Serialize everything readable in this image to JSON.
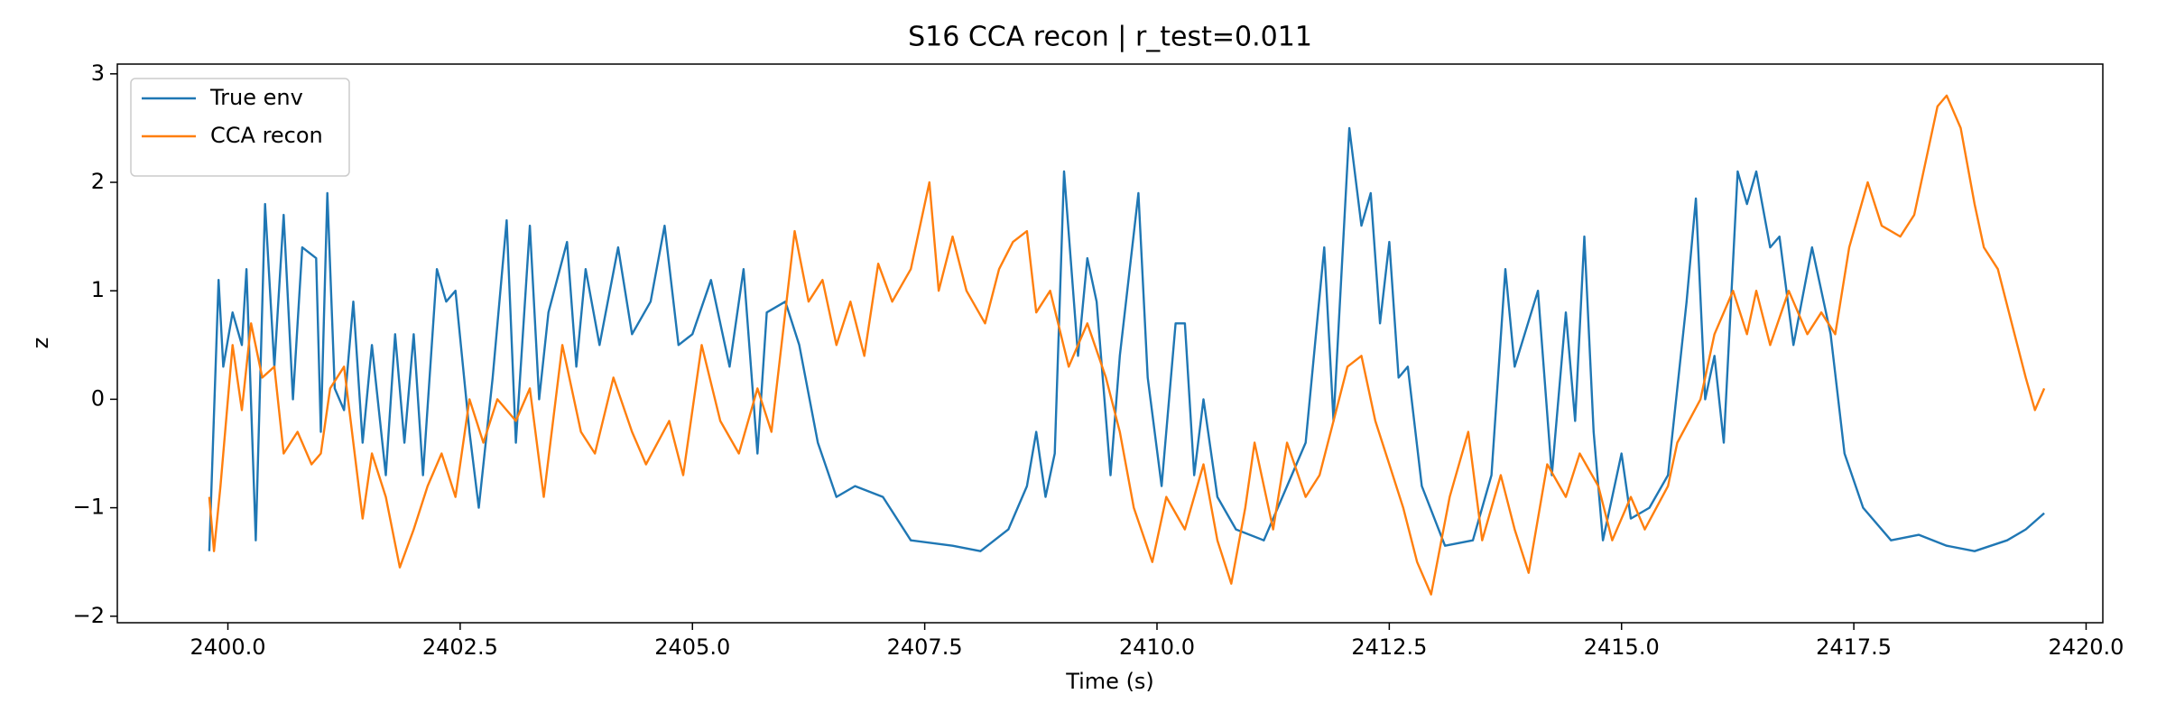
{
  "chart_data": {
    "type": "line",
    "title": "S16 CCA recon | r_test=0.011",
    "x_label": "Time (s)",
    "y_label": "z",
    "xlim": [
      2398.81,
      2420.18
    ],
    "ylim": [
      -2.06,
      3.09
    ],
    "xticks": [
      {
        "value": 2400,
        "label": "2400.0"
      },
      {
        "value": 2402.5,
        "label": "2402.5"
      },
      {
        "value": 2405,
        "label": "2405.0"
      },
      {
        "value": 2407.5,
        "label": "2407.5"
      },
      {
        "value": 2410,
        "label": "2410.0"
      },
      {
        "value": 2412.5,
        "label": "2412.5"
      },
      {
        "value": 2415,
        "label": "2415.0"
      },
      {
        "value": 2417.5,
        "label": "2417.5"
      },
      {
        "value": 2420,
        "label": "2420.0"
      }
    ],
    "yticks": [
      {
        "value": -2,
        "label": "−2"
      },
      {
        "value": -1,
        "label": "−1"
      },
      0,
      1,
      2,
      3
    ],
    "grid": false,
    "legend": "upper left",
    "series": [
      {
        "name": "True env",
        "color": "#1f77b4",
        "x": [
          2399.8,
          2399.9,
          2399.95,
          2400.05,
          2400.15,
          2400.2,
          2400.3,
          2400.4,
          2400.5,
          2400.6,
          2400.7,
          2400.8,
          2400.95,
          2401.0,
          2401.07,
          2401.15,
          2401.25,
          2401.35,
          2401.45,
          2401.55,
          2401.7,
          2401.8,
          2401.9,
          2402.0,
          2402.1,
          2402.25,
          2402.35,
          2402.45,
          2402.6,
          2402.7,
          2402.85,
          2403.0,
          2403.1,
          2403.25,
          2403.35,
          2403.45,
          2403.65,
          2403.75,
          2403.85,
          2404.0,
          2404.2,
          2404.35,
          2404.55,
          2404.7,
          2404.85,
          2405.0,
          2405.2,
          2405.4,
          2405.55,
          2405.7,
          2405.8,
          2406.0,
          2406.15,
          2406.35,
          2406.55,
          2406.75,
          2407.05,
          2407.35,
          2407.8,
          2408.1,
          2408.4,
          2408.6,
          2408.7,
          2408.8,
          2408.9,
          2409.0,
          2409.15,
          2409.25,
          2409.35,
          2409.5,
          2409.6,
          2409.8,
          2409.9,
          2410.05,
          2410.2,
          2410.3,
          2410.4,
          2410.5,
          2410.65,
          2410.85,
          2411.15,
          2411.45,
          2411.6,
          2411.8,
          2411.9,
          2412.07,
          2412.2,
          2412.3,
          2412.4,
          2412.5,
          2412.6,
          2412.7,
          2412.85,
          2413.1,
          2413.4,
          2413.6,
          2413.75,
          2413.85,
          2414.1,
          2414.25,
          2414.4,
          2414.5,
          2414.6,
          2414.7,
          2414.8,
          2415.0,
          2415.1,
          2415.3,
          2415.5,
          2415.7,
          2415.8,
          2415.9,
          2416.0,
          2416.1,
          2416.25,
          2416.35,
          2416.45,
          2416.6,
          2416.7,
          2416.85,
          2417.05,
          2417.25,
          2417.4,
          2417.6,
          2417.9,
          2418.2,
          2418.5,
          2418.8,
          2419.15,
          2419.35,
          2419.55
        ],
        "values": [
          -1.4,
          1.1,
          0.3,
          0.8,
          0.5,
          1.2,
          -1.3,
          1.8,
          0.3,
          1.7,
          0.0,
          1.4,
          1.3,
          -0.3,
          1.9,
          0.1,
          -0.1,
          0.9,
          -0.4,
          0.5,
          -0.7,
          0.6,
          -0.4,
          0.6,
          -0.7,
          1.2,
          0.9,
          1.0,
          -0.3,
          -1.0,
          0.2,
          1.65,
          -0.4,
          1.6,
          0.0,
          0.8,
          1.45,
          0.3,
          1.2,
          0.5,
          1.4,
          0.6,
          0.9,
          1.6,
          0.5,
          0.6,
          1.1,
          0.3,
          1.2,
          -0.5,
          0.8,
          0.9,
          0.5,
          -0.4,
          -0.9,
          -0.8,
          -0.9,
          -1.3,
          -1.35,
          -1.4,
          -1.2,
          -0.8,
          -0.3,
          -0.9,
          -0.5,
          2.1,
          0.4,
          1.3,
          0.9,
          -0.7,
          0.4,
          1.9,
          0.2,
          -0.8,
          0.7,
          0.7,
          -0.7,
          0.0,
          -0.9,
          -1.2,
          -1.3,
          -0.7,
          -0.4,
          1.4,
          -0.2,
          2.5,
          1.6,
          1.9,
          0.7,
          1.45,
          0.2,
          0.3,
          -0.8,
          -1.35,
          -1.3,
          -0.7,
          1.2,
          0.3,
          1.0,
          -0.7,
          0.8,
          -0.2,
          1.5,
          -0.3,
          -1.3,
          -0.5,
          -1.1,
          -1.0,
          -0.7,
          0.9,
          1.85,
          0.0,
          0.4,
          -0.4,
          2.1,
          1.8,
          2.1,
          1.4,
          1.5,
          0.5,
          1.4,
          0.6,
          -0.5,
          -1.0,
          -1.3,
          -1.25,
          -1.35,
          -1.4,
          -1.3,
          -1.2,
          -1.05
        ]
      },
      {
        "name": "CCA recon",
        "color": "#ff7f0e",
        "x": [
          2399.8,
          2399.85,
          2399.92,
          2400.05,
          2400.15,
          2400.25,
          2400.37,
          2400.5,
          2400.6,
          2400.75,
          2400.9,
          2401.0,
          2401.1,
          2401.25,
          2401.45,
          2401.55,
          2401.7,
          2401.85,
          2402.0,
          2402.15,
          2402.3,
          2402.45,
          2402.6,
          2402.75,
          2402.9,
          2403.1,
          2403.25,
          2403.4,
          2403.6,
          2403.8,
          2403.95,
          2404.15,
          2404.35,
          2404.5,
          2404.75,
          2404.9,
          2405.1,
          2405.3,
          2405.5,
          2405.7,
          2405.85,
          2406.1,
          2406.25,
          2406.4,
          2406.55,
          2406.7,
          2406.85,
          2407.0,
          2407.15,
          2407.35,
          2407.55,
          2407.65,
          2407.8,
          2407.95,
          2408.15,
          2408.3,
          2408.45,
          2408.6,
          2408.7,
          2408.85,
          2409.05,
          2409.25,
          2409.45,
          2409.6,
          2409.75,
          2409.95,
          2410.1,
          2410.3,
          2410.5,
          2410.65,
          2410.8,
          2410.95,
          2411.05,
          2411.25,
          2411.4,
          2411.6,
          2411.75,
          2411.9,
          2412.05,
          2412.2,
          2412.35,
          2412.5,
          2412.65,
          2412.8,
          2412.95,
          2413.15,
          2413.35,
          2413.5,
          2413.7,
          2413.85,
          2414.0,
          2414.2,
          2414.4,
          2414.55,
          2414.75,
          2414.9,
          2415.1,
          2415.25,
          2415.5,
          2415.6,
          2415.85,
          2416.0,
          2416.2,
          2416.35,
          2416.45,
          2416.6,
          2416.8,
          2417.0,
          2417.15,
          2417.3,
          2417.45,
          2417.65,
          2417.8,
          2418.0,
          2418.15,
          2418.3,
          2418.4,
          2418.5,
          2418.65,
          2418.8,
          2418.9,
          2419.05,
          2419.2,
          2419.35,
          2419.45,
          2419.55
        ],
        "values": [
          -0.9,
          -1.4,
          -0.8,
          0.5,
          -0.1,
          0.7,
          0.2,
          0.3,
          -0.5,
          -0.3,
          -0.6,
          -0.5,
          0.1,
          0.3,
          -1.1,
          -0.5,
          -0.9,
          -1.55,
          -1.2,
          -0.8,
          -0.5,
          -0.9,
          0.0,
          -0.4,
          0.0,
          -0.2,
          0.1,
          -0.9,
          0.5,
          -0.3,
          -0.5,
          0.2,
          -0.3,
          -0.6,
          -0.2,
          -0.7,
          0.5,
          -0.2,
          -0.5,
          0.1,
          -0.3,
          1.55,
          0.9,
          1.1,
          0.5,
          0.9,
          0.4,
          1.25,
          0.9,
          1.2,
          2.0,
          1.0,
          1.5,
          1.0,
          0.7,
          1.2,
          1.45,
          1.55,
          0.8,
          1.0,
          0.3,
          0.7,
          0.2,
          -0.3,
          -1.0,
          -1.5,
          -0.9,
          -1.2,
          -0.6,
          -1.3,
          -1.7,
          -1.0,
          -0.4,
          -1.2,
          -0.4,
          -0.9,
          -0.7,
          -0.2,
          0.3,
          0.4,
          -0.2,
          -0.6,
          -1.0,
          -1.5,
          -1.8,
          -0.9,
          -0.3,
          -1.3,
          -0.7,
          -1.2,
          -1.6,
          -0.6,
          -0.9,
          -0.5,
          -0.8,
          -1.3,
          -0.9,
          -1.2,
          -0.8,
          -0.4,
          0.0,
          0.6,
          1.0,
          0.6,
          1.0,
          0.5,
          1.0,
          0.6,
          0.8,
          0.6,
          1.4,
          2.0,
          1.6,
          1.5,
          1.7,
          2.3,
          2.7,
          2.8,
          2.5,
          1.8,
          1.4,
          1.2,
          0.7,
          0.2,
          -0.1,
          0.1
        ]
      }
    ]
  }
}
